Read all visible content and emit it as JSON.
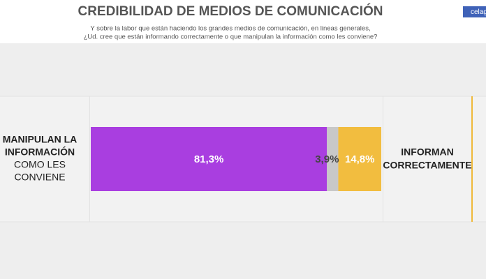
{
  "badge": "celag",
  "chart_data": {
    "type": "stacked-bar",
    "orientation": "horizontal",
    "title": "CREDIBILIDAD DE MEDIOS DE COMUNICACIÓN",
    "subtitle": [
      "Y sobre la labor que están haciendo los grandes medios de comunicación, en lineas generales,",
      "¿Ud. cree que están informando correctamente o que manipulan la información como les conviene?"
    ],
    "left_label": {
      "bold": [
        "MANIPULAN LA",
        "INFORMACIÓN"
      ],
      "regular": [
        "COMO LES",
        "CONVIENE"
      ]
    },
    "right_label": [
      "INFORMAN",
      "CORRECTAMENTE"
    ],
    "xlim": [
      0,
      100
    ],
    "series": [
      {
        "color": "#a93ee0",
        "label_color": "#ffffff",
        "values": [
          81.3
        ],
        "value_labels": [
          "81,3%"
        ]
      },
      {
        "color": "#c8c8c8",
        "label_color": "#444444",
        "values": [
          3.9
        ],
        "value_labels": [
          "3,9%"
        ]
      },
      {
        "color": "#f2bd3f",
        "label_color": "#ffffff",
        "values": [
          14.8
        ],
        "value_labels": [
          "14,8%"
        ]
      }
    ]
  }
}
